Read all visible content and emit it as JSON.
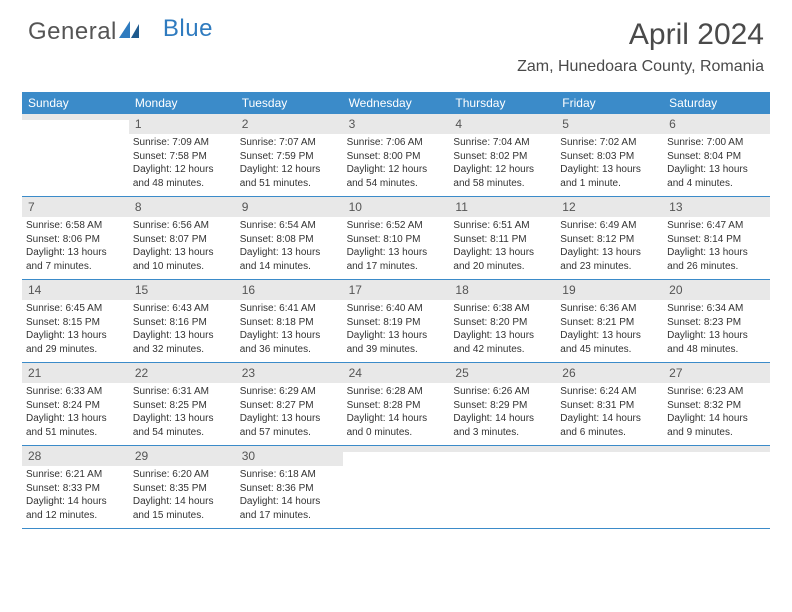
{
  "logo": {
    "part1": "General",
    "part2": "Blue"
  },
  "title": "April 2024",
  "location": "Zam, Hunedoara County, Romania",
  "colors": {
    "header_bg": "#3b8bc9",
    "header_text": "#ffffff",
    "daynum_bg": "#e8e8e8",
    "daynum_text": "#555555",
    "body_text": "#333333",
    "logo_gray": "#555555",
    "logo_blue": "#2f7bbf",
    "border": "#3b8bc9",
    "page_bg": "#ffffff"
  },
  "fonts": {
    "title_size_pt": 22,
    "location_size_pt": 12,
    "weekday_size_pt": 9,
    "daynum_size_pt": 9,
    "body_size_pt": 7.5
  },
  "weekdays": [
    "Sunday",
    "Monday",
    "Tuesday",
    "Wednesday",
    "Thursday",
    "Friday",
    "Saturday"
  ],
  "weeks": [
    [
      {
        "n": "",
        "sr": "",
        "ss": "",
        "dl": ""
      },
      {
        "n": "1",
        "sr": "Sunrise: 7:09 AM",
        "ss": "Sunset: 7:58 PM",
        "dl": "Daylight: 12 hours and 48 minutes."
      },
      {
        "n": "2",
        "sr": "Sunrise: 7:07 AM",
        "ss": "Sunset: 7:59 PM",
        "dl": "Daylight: 12 hours and 51 minutes."
      },
      {
        "n": "3",
        "sr": "Sunrise: 7:06 AM",
        "ss": "Sunset: 8:00 PM",
        "dl": "Daylight: 12 hours and 54 minutes."
      },
      {
        "n": "4",
        "sr": "Sunrise: 7:04 AM",
        "ss": "Sunset: 8:02 PM",
        "dl": "Daylight: 12 hours and 58 minutes."
      },
      {
        "n": "5",
        "sr": "Sunrise: 7:02 AM",
        "ss": "Sunset: 8:03 PM",
        "dl": "Daylight: 13 hours and 1 minute."
      },
      {
        "n": "6",
        "sr": "Sunrise: 7:00 AM",
        "ss": "Sunset: 8:04 PM",
        "dl": "Daylight: 13 hours and 4 minutes."
      }
    ],
    [
      {
        "n": "7",
        "sr": "Sunrise: 6:58 AM",
        "ss": "Sunset: 8:06 PM",
        "dl": "Daylight: 13 hours and 7 minutes."
      },
      {
        "n": "8",
        "sr": "Sunrise: 6:56 AM",
        "ss": "Sunset: 8:07 PM",
        "dl": "Daylight: 13 hours and 10 minutes."
      },
      {
        "n": "9",
        "sr": "Sunrise: 6:54 AM",
        "ss": "Sunset: 8:08 PM",
        "dl": "Daylight: 13 hours and 14 minutes."
      },
      {
        "n": "10",
        "sr": "Sunrise: 6:52 AM",
        "ss": "Sunset: 8:10 PM",
        "dl": "Daylight: 13 hours and 17 minutes."
      },
      {
        "n": "11",
        "sr": "Sunrise: 6:51 AM",
        "ss": "Sunset: 8:11 PM",
        "dl": "Daylight: 13 hours and 20 minutes."
      },
      {
        "n": "12",
        "sr": "Sunrise: 6:49 AM",
        "ss": "Sunset: 8:12 PM",
        "dl": "Daylight: 13 hours and 23 minutes."
      },
      {
        "n": "13",
        "sr": "Sunrise: 6:47 AM",
        "ss": "Sunset: 8:14 PM",
        "dl": "Daylight: 13 hours and 26 minutes."
      }
    ],
    [
      {
        "n": "14",
        "sr": "Sunrise: 6:45 AM",
        "ss": "Sunset: 8:15 PM",
        "dl": "Daylight: 13 hours and 29 minutes."
      },
      {
        "n": "15",
        "sr": "Sunrise: 6:43 AM",
        "ss": "Sunset: 8:16 PM",
        "dl": "Daylight: 13 hours and 32 minutes."
      },
      {
        "n": "16",
        "sr": "Sunrise: 6:41 AM",
        "ss": "Sunset: 8:18 PM",
        "dl": "Daylight: 13 hours and 36 minutes."
      },
      {
        "n": "17",
        "sr": "Sunrise: 6:40 AM",
        "ss": "Sunset: 8:19 PM",
        "dl": "Daylight: 13 hours and 39 minutes."
      },
      {
        "n": "18",
        "sr": "Sunrise: 6:38 AM",
        "ss": "Sunset: 8:20 PM",
        "dl": "Daylight: 13 hours and 42 minutes."
      },
      {
        "n": "19",
        "sr": "Sunrise: 6:36 AM",
        "ss": "Sunset: 8:21 PM",
        "dl": "Daylight: 13 hours and 45 minutes."
      },
      {
        "n": "20",
        "sr": "Sunrise: 6:34 AM",
        "ss": "Sunset: 8:23 PM",
        "dl": "Daylight: 13 hours and 48 minutes."
      }
    ],
    [
      {
        "n": "21",
        "sr": "Sunrise: 6:33 AM",
        "ss": "Sunset: 8:24 PM",
        "dl": "Daylight: 13 hours and 51 minutes."
      },
      {
        "n": "22",
        "sr": "Sunrise: 6:31 AM",
        "ss": "Sunset: 8:25 PM",
        "dl": "Daylight: 13 hours and 54 minutes."
      },
      {
        "n": "23",
        "sr": "Sunrise: 6:29 AM",
        "ss": "Sunset: 8:27 PM",
        "dl": "Daylight: 13 hours and 57 minutes."
      },
      {
        "n": "24",
        "sr": "Sunrise: 6:28 AM",
        "ss": "Sunset: 8:28 PM",
        "dl": "Daylight: 14 hours and 0 minutes."
      },
      {
        "n": "25",
        "sr": "Sunrise: 6:26 AM",
        "ss": "Sunset: 8:29 PM",
        "dl": "Daylight: 14 hours and 3 minutes."
      },
      {
        "n": "26",
        "sr": "Sunrise: 6:24 AM",
        "ss": "Sunset: 8:31 PM",
        "dl": "Daylight: 14 hours and 6 minutes."
      },
      {
        "n": "27",
        "sr": "Sunrise: 6:23 AM",
        "ss": "Sunset: 8:32 PM",
        "dl": "Daylight: 14 hours and 9 minutes."
      }
    ],
    [
      {
        "n": "28",
        "sr": "Sunrise: 6:21 AM",
        "ss": "Sunset: 8:33 PM",
        "dl": "Daylight: 14 hours and 12 minutes."
      },
      {
        "n": "29",
        "sr": "Sunrise: 6:20 AM",
        "ss": "Sunset: 8:35 PM",
        "dl": "Daylight: 14 hours and 15 minutes."
      },
      {
        "n": "30",
        "sr": "Sunrise: 6:18 AM",
        "ss": "Sunset: 8:36 PM",
        "dl": "Daylight: 14 hours and 17 minutes."
      },
      {
        "n": "",
        "sr": "",
        "ss": "",
        "dl": ""
      },
      {
        "n": "",
        "sr": "",
        "ss": "",
        "dl": ""
      },
      {
        "n": "",
        "sr": "",
        "ss": "",
        "dl": ""
      },
      {
        "n": "",
        "sr": "",
        "ss": "",
        "dl": ""
      }
    ]
  ]
}
